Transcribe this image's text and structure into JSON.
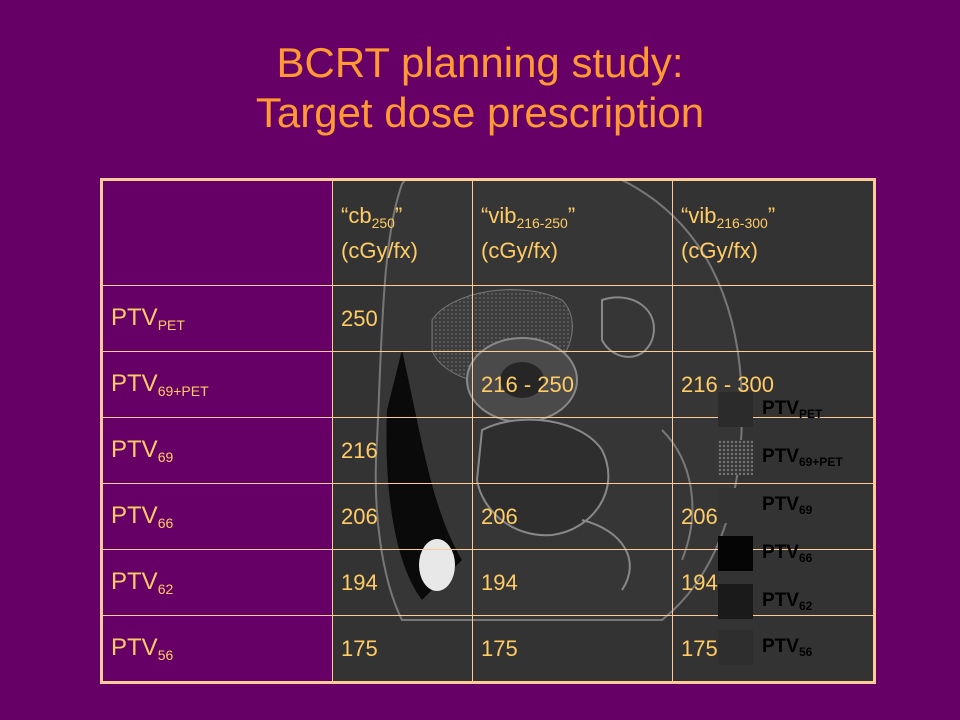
{
  "title": {
    "line1": "BCRT planning study:",
    "line2": "Target dose prescription"
  },
  "table": {
    "headers": [
      {
        "main": "cb",
        "sub": "250",
        "unit": "(cGy/fx)"
      },
      {
        "main": "vib",
        "sub": "216-250",
        "unit": "(cGy/fx)"
      },
      {
        "main": "vib",
        "sub": "216-300",
        "unit": "(cGy/fx)"
      }
    ],
    "rows": [
      {
        "label": "PTV",
        "sub": "PET",
        "cells": [
          "250",
          "",
          ""
        ]
      },
      {
        "label": "PTV",
        "sub": "69+PET",
        "cells": [
          "",
          "216 - 250",
          "216 - 300"
        ]
      },
      {
        "label": "PTV",
        "sub": "69",
        "cells": [
          "216",
          "",
          ""
        ]
      },
      {
        "label": "PTV",
        "sub": "66",
        "cells": [
          "206",
          "206",
          "206"
        ]
      },
      {
        "label": "PTV",
        "sub": "62",
        "cells": [
          "194",
          "194",
          "194"
        ]
      },
      {
        "label": "PTV",
        "sub": "56",
        "cells": [
          "175",
          "175",
          "175"
        ]
      }
    ]
  },
  "legend": [
    {
      "label": "PTV",
      "sub": "PET",
      "color": "#2b2b2b"
    },
    {
      "label": "PTV",
      "sub": "69+PET",
      "color": "#3a3a3a"
    },
    {
      "label": "PTV",
      "sub": "69",
      "color": "#333333"
    },
    {
      "label": "PTV",
      "sub": "66",
      "color": "#050505"
    },
    {
      "label": "PTV",
      "sub": "62",
      "color": "#1a1a1a"
    },
    {
      "label": "PTV",
      "sub": "56",
      "color": "#2e2e2e"
    }
  ]
}
